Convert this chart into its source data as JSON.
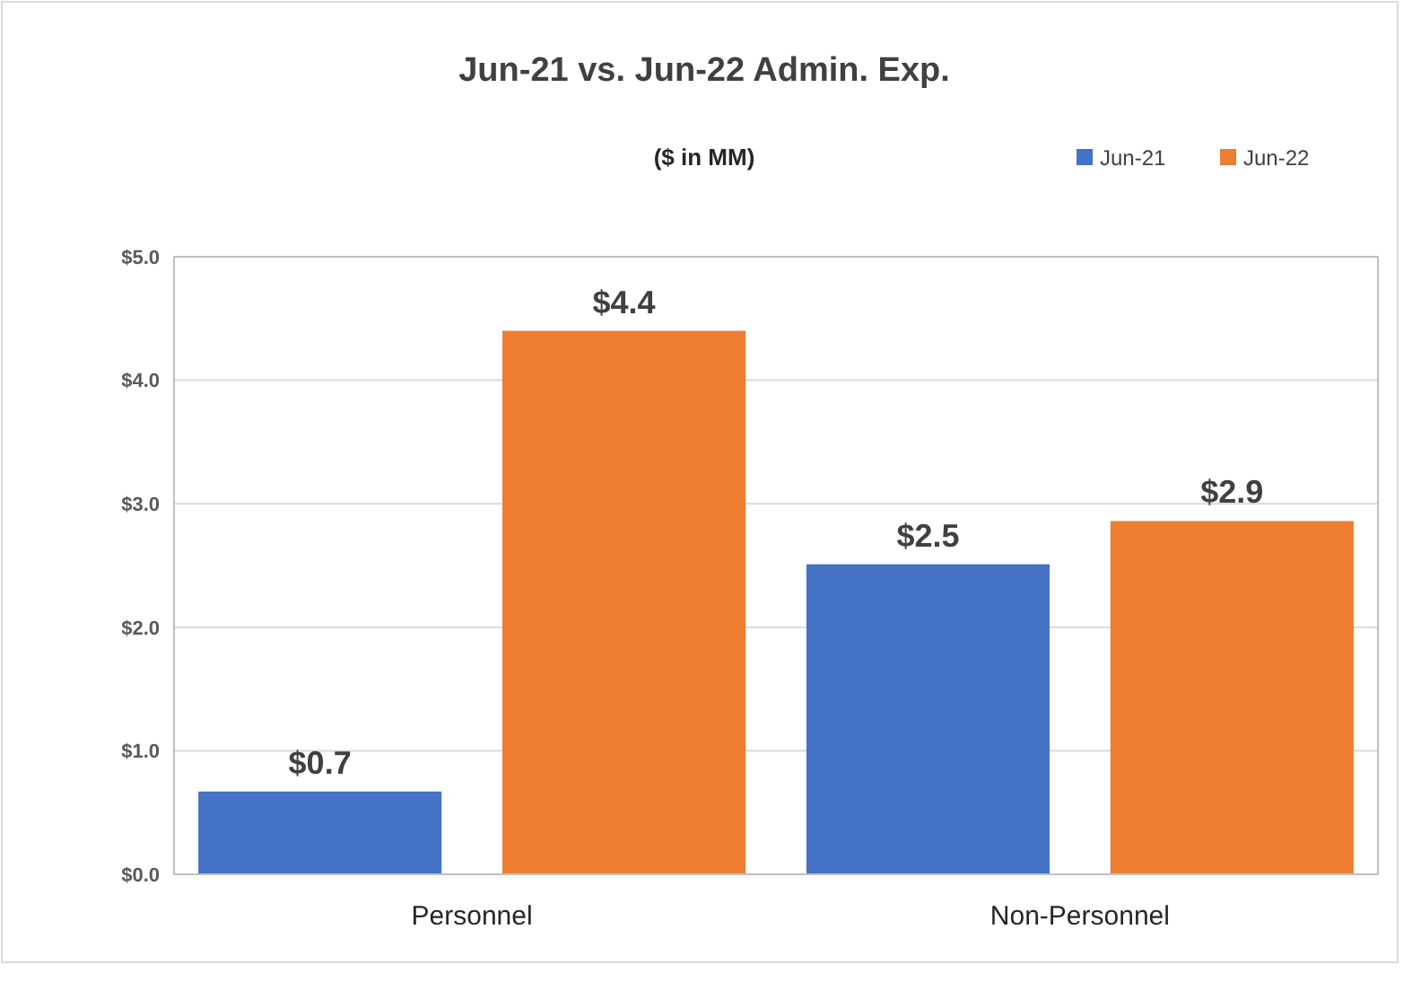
{
  "chart_data": {
    "type": "bar",
    "title": "Jun-21 vs. Jun-22 Admin. Exp.",
    "subtitle": "($ in MM)",
    "categories": [
      "Personnel",
      "Non-Personnel"
    ],
    "series": [
      {
        "name": "Jun-21",
        "color": "#4472c4",
        "values": [
          0.67,
          2.51
        ],
        "value_labels": [
          "$0.7",
          "$2.5"
        ]
      },
      {
        "name": "Jun-22",
        "color": "#ed7d31",
        "values": [
          4.4,
          2.86
        ],
        "value_labels": [
          "$4.4",
          "$2.9"
        ]
      }
    ],
    "ylim": [
      0,
      5
    ],
    "yticks": [
      {
        "value": 0,
        "label": "$0.0"
      },
      {
        "value": 1,
        "label": "$1.0"
      },
      {
        "value": 2,
        "label": "$2.0"
      },
      {
        "value": 3,
        "label": "$3.0"
      },
      {
        "value": 4,
        "label": "$4.0"
      },
      {
        "value": 5,
        "label": "$5.0"
      }
    ],
    "grid": "y",
    "legend": "top right"
  }
}
